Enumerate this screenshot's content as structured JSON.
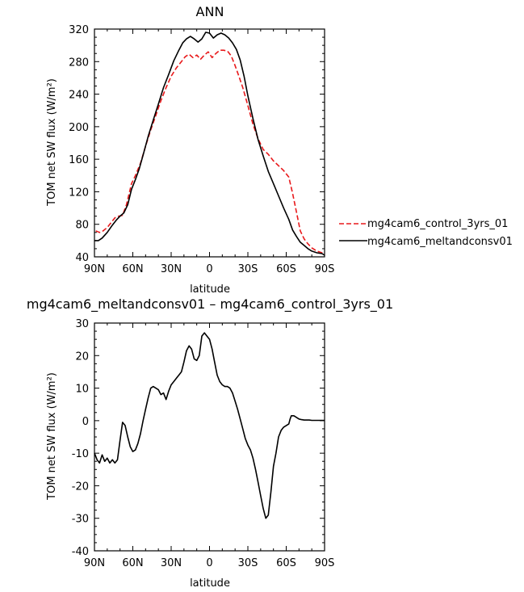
{
  "chart_data": [
    {
      "type": "line",
      "title": "ANN",
      "xlabel": "latitude",
      "ylabel": "TOM net SW flux (W/m²)",
      "xlim": [
        90,
        -90
      ],
      "ylim": [
        40,
        320
      ],
      "x_ticks": [
        {
          "value": 90,
          "label": "90N"
        },
        {
          "value": 60,
          "label": "60N"
        },
        {
          "value": 30,
          "label": "30N"
        },
        {
          "value": 0,
          "label": "0"
        },
        {
          "value": -30,
          "label": "30S"
        },
        {
          "value": -60,
          "label": "60S"
        },
        {
          "value": -90,
          "label": "90S"
        }
      ],
      "y_ticks": [
        40,
        80,
        120,
        160,
        200,
        240,
        280,
        320
      ],
      "legend_position": "right",
      "series": [
        {
          "name": "mg4cam6_control_3yrs_01",
          "color": "#e8191b",
          "dash": "dashed",
          "x": [
            89,
            86,
            84,
            80,
            77,
            74,
            71,
            68,
            65,
            61,
            58,
            54,
            50,
            46,
            42,
            38,
            34,
            30,
            26,
            22,
            19,
            16,
            13,
            10,
            7,
            4,
            1,
            -2,
            -5,
            -8,
            -11,
            -14,
            -17,
            -20,
            -23,
            -26,
            -30,
            -34,
            -38,
            -42,
            -46,
            -50,
            -54,
            -58,
            -62,
            -65,
            -68,
            -71,
            -74,
            -77,
            -80,
            -84,
            -88,
            -90
          ],
          "y": [
            72,
            70,
            71,
            76,
            82,
            88,
            90,
            91,
            104,
            130,
            140,
            155,
            176,
            196,
            214,
            232,
            248,
            262,
            272,
            280,
            286,
            289,
            285,
            288,
            283,
            288,
            292,
            285,
            290,
            294,
            294,
            293,
            287,
            275,
            262,
            248,
            226,
            203,
            185,
            172,
            166,
            158,
            152,
            146,
            138,
            118,
            95,
            72,
            62,
            56,
            51,
            47,
            45,
            43
          ]
        },
        {
          "name": "mg4cam6_meltandconsv01",
          "color": "#000000",
          "dash": "solid",
          "x": [
            90,
            87,
            84,
            80,
            76,
            73,
            70,
            67,
            64,
            61,
            58,
            55,
            52,
            48,
            44,
            40,
            36,
            32,
            28,
            24,
            21,
            18,
            15,
            12,
            9,
            6,
            3,
            0,
            -3,
            -6,
            -9,
            -12,
            -15,
            -18,
            -21,
            -24,
            -27,
            -30,
            -34,
            -38,
            -42,
            -46,
            -50,
            -54,
            -58,
            -62,
            -65,
            -68,
            -71,
            -74,
            -77,
            -80,
            -84,
            -88,
            -90
          ],
          "y": [
            60,
            60,
            63,
            70,
            79,
            85,
            90,
            94,
            104,
            123,
            135,
            148,
            165,
            188,
            208,
            228,
            248,
            264,
            281,
            294,
            303,
            308,
            311,
            308,
            304,
            308,
            316,
            315,
            309,
            313,
            315,
            313,
            309,
            303,
            295,
            282,
            262,
            238,
            210,
            184,
            164,
            145,
            130,
            115,
            100,
            86,
            73,
            65,
            58,
            54,
            50,
            47,
            45,
            44,
            42
          ]
        }
      ]
    },
    {
      "type": "line",
      "title": "mg4cam6_meltandconsv01 – mg4cam6_control_3yrs_01",
      "xlabel": "latitude",
      "ylabel": "TOM net SW flux (W/m²)",
      "xlim": [
        90,
        -90
      ],
      "ylim": [
        -40,
        30
      ],
      "x_ticks": [
        {
          "value": 90,
          "label": "90N"
        },
        {
          "value": 60,
          "label": "60N"
        },
        {
          "value": 30,
          "label": "30N"
        },
        {
          "value": 0,
          "label": "0"
        },
        {
          "value": -30,
          "label": "30S"
        },
        {
          "value": -60,
          "label": "60S"
        },
        {
          "value": -90,
          "label": "90S"
        }
      ],
      "y_ticks": [
        -40,
        -30,
        -20,
        -10,
        0,
        10,
        20,
        30
      ],
      "series": [
        {
          "color": "#000000",
          "dash": "solid",
          "x": [
            90,
            88,
            86,
            84,
            82,
            80,
            78,
            76,
            74,
            72,
            70,
            68,
            66,
            64,
            62,
            60,
            58,
            56,
            54,
            52,
            50,
            48,
            46,
            44,
            42,
            40,
            38,
            36,
            34,
            32,
            30,
            28,
            26,
            24,
            22,
            20,
            18,
            16,
            14,
            12,
            10,
            8,
            6,
            4,
            2,
            0,
            -2,
            -4,
            -6,
            -8,
            -10,
            -12,
            -14,
            -16,
            -18,
            -20,
            -22,
            -24,
            -26,
            -28,
            -30,
            -32,
            -34,
            -36,
            -38,
            -40,
            -42,
            -44,
            -46,
            -48,
            -50,
            -52,
            -54,
            -56,
            -58,
            -60,
            -62,
            -63,
            -64,
            -66,
            -68,
            -70,
            -72,
            -74,
            -76,
            -78,
            -80,
            -82,
            -84,
            -86,
            -88,
            -90
          ],
          "y": [
            -10,
            -12,
            -13,
            -10.5,
            -12.5,
            -11.5,
            -13,
            -12,
            -13,
            -12,
            -6,
            -0.5,
            -1.5,
            -5,
            -8,
            -9.5,
            -9,
            -7,
            -4,
            0,
            3.5,
            7,
            10,
            10.5,
            10,
            9.5,
            8,
            8.5,
            6.5,
            9,
            11,
            12,
            13,
            14,
            15,
            18,
            21.5,
            23,
            22,
            19,
            18.5,
            20,
            26,
            27,
            26,
            25,
            22,
            18,
            14,
            12,
            11,
            10.5,
            10.5,
            10,
            8.5,
            6,
            3.5,
            0.5,
            -2.5,
            -5.5,
            -7.5,
            -9,
            -11.5,
            -15,
            -19,
            -23,
            -27,
            -30,
            -29,
            -22,
            -14,
            -10,
            -5,
            -3,
            -2,
            -1.5,
            -1,
            0.5,
            1.5,
            1.5,
            1,
            0.5,
            0.3,
            0.2,
            0.2,
            0.2,
            0.1,
            0.1,
            0.1,
            0.1,
            0.1,
            0.1
          ]
        }
      ]
    }
  ]
}
